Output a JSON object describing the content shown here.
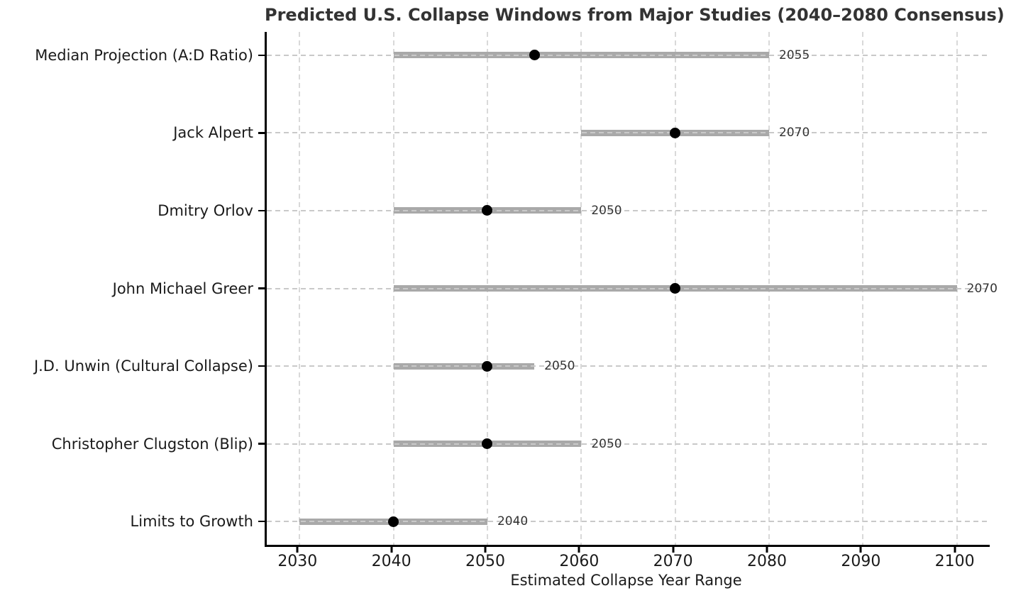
{
  "title": "Predicted U.S. Collapse Windows from Major Studies (2040–2080 Consensus)",
  "xlabel": "Estimated Collapse Year Range",
  "chart_data": {
    "type": "range_dot",
    "title": "Predicted U.S. Collapse Windows from Major Studies (2040–2080 Consensus)",
    "xlabel": "Estimated Collapse Year Range",
    "ylabel": "",
    "x_ticks": [
      2030,
      2040,
      2050,
      2060,
      2070,
      2080,
      2090,
      2100
    ],
    "xlim": [
      2026.5,
      2103.5
    ],
    "grid": true,
    "legend": false,
    "series": [
      {
        "label": "Median Projection (A:D Ratio)",
        "range_start": 2040,
        "range_end": 2080,
        "point": 2055,
        "annotation": "2055"
      },
      {
        "label": "Jack Alpert",
        "range_start": 2060,
        "range_end": 2080,
        "point": 2070,
        "annotation": "2070"
      },
      {
        "label": "Dmitry Orlov",
        "range_start": 2040,
        "range_end": 2060,
        "point": 2050,
        "annotation": "2050"
      },
      {
        "label": "John Michael Greer",
        "range_start": 2040,
        "range_end": 2100,
        "point": 2070,
        "annotation": "2070"
      },
      {
        "label": "J.D. Unwin (Cultural Collapse)",
        "range_start": 2040,
        "range_end": 2055,
        "point": 2050,
        "annotation": "2050"
      },
      {
        "label": "Christopher Clugston (Blip)",
        "range_start": 2040,
        "range_end": 2060,
        "point": 2050,
        "annotation": "2050"
      },
      {
        "label": "Limits to Growth",
        "range_start": 2030,
        "range_end": 2050,
        "point": 2040,
        "annotation": "2040"
      }
    ],
    "colors": {
      "bar": "#a9a9a9",
      "point": "#000000",
      "vertical_grid": "#d9d9d9",
      "row_line": "#c9c9c9",
      "spine": "#000000",
      "title_text": "#333333",
      "axis_text": "#1a1a1a",
      "annotation_text": "#333333"
    }
  }
}
